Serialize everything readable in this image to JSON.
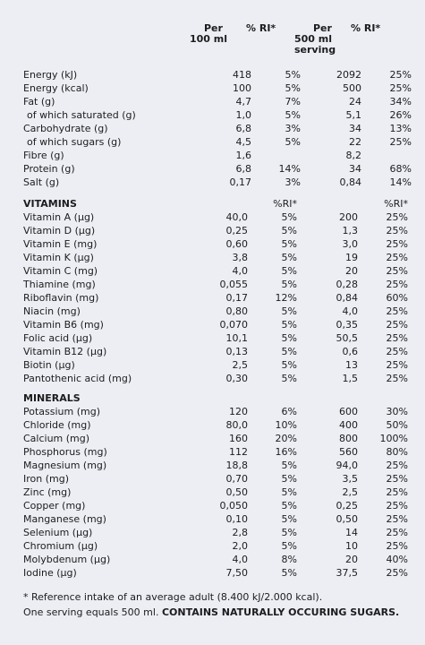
{
  "header": {
    "per100_line1": "Per",
    "per100_line2": "100 ml",
    "ri1": "% RI*",
    "per500_line1": "Per",
    "per500_line2": "500 ml",
    "per500_line3": "serving",
    "ri2": "% RI*"
  },
  "nutrition": [
    {
      "name": "Energy (kJ)",
      "v100": "418",
      "ri100": "5%",
      "v500": "2092",
      "ri500": "25%"
    },
    {
      "name": "Energy (kcal)",
      "v100": "100",
      "ri100": "5%",
      "v500": "500",
      "ri500": "25%"
    },
    {
      "name": "Fat (g)",
      "v100": "4,7",
      "ri100": "7%",
      "v500": "24",
      "ri500": "34%"
    },
    {
      "name": "of which saturated (g)",
      "v100": "1,0",
      "ri100": "5%",
      "v500": "5,1",
      "ri500": "26%",
      "indent": true
    },
    {
      "name": "Carbohydrate  (g)",
      "v100": "6,8",
      "ri100": "3%",
      "v500": "34",
      "ri500": "13%"
    },
    {
      "name": "of which sugars (g)",
      "v100": "4,5",
      "ri100": "5%",
      "v500": "22",
      "ri500": "25%",
      "indent": true
    },
    {
      "name": "Fibre (g)",
      "v100": "1,6",
      "ri100": "",
      "v500": "8,2",
      "ri500": ""
    },
    {
      "name": "Protein (g)",
      "v100": "6,8",
      "ri100": "14%",
      "v500": "34",
      "ri500": "68%"
    },
    {
      "name": "Salt (g)",
      "v100": "0,17",
      "ri100": "3%",
      "v500": "0,84",
      "ri500": "14%"
    }
  ],
  "vitamins": {
    "title": "VITAMINS",
    "ri_label1": "%RI*",
    "ri_label2": "%RI*",
    "rows": [
      {
        "name": "Vitamin A (µg)",
        "v100": "40,0",
        "ri100": "5%",
        "v500": "200",
        "ri500": "25%"
      },
      {
        "name": "Vitamin D (µg)",
        "v100": "0,25",
        "ri100": "5%",
        "v500": "1,3",
        "ri500": "25%"
      },
      {
        "name": "Vitamin E (mg)",
        "v100": "0,60",
        "ri100": "5%",
        "v500": "3,0",
        "ri500": "25%"
      },
      {
        "name": "Vitamin K (µg)",
        "v100": "3,8",
        "ri100": "5%",
        "v500": "19",
        "ri500": "25%"
      },
      {
        "name": "Vitamin C (mg)",
        "v100": "4,0",
        "ri100": "5%",
        "v500": "20",
        "ri500": "25%"
      },
      {
        "name": "Thiamine (mg)",
        "v100": "0,055",
        "ri100": "5%",
        "v500": "0,28",
        "ri500": "25%"
      },
      {
        "name": "Riboflavin (mg)",
        "v100": "0,17",
        "ri100": "12%",
        "v500": "0,84",
        "ri500": "60%"
      },
      {
        "name": "Niacin (mg)",
        "v100": "0,80",
        "ri100": "5%",
        "v500": "4,0",
        "ri500": "25%"
      },
      {
        "name": "Vitamin B6 (mg)",
        "v100": "0,070",
        "ri100": "5%",
        "v500": "0,35",
        "ri500": "25%"
      },
      {
        "name": "Folic acid (µg)",
        "v100": "10,1",
        "ri100": "5%",
        "v500": "50,5",
        "ri500": "25%"
      },
      {
        "name": "Vitamin B12 (µg)",
        "v100": "0,13",
        "ri100": "5%",
        "v500": "0,6",
        "ri500": "25%"
      },
      {
        "name": "Biotin (µg)",
        "v100": "2,5",
        "ri100": "5%",
        "v500": "13",
        "ri500": "25%"
      },
      {
        "name": "Pantothenic acid (mg)",
        "v100": "0,30",
        "ri100": "5%",
        "v500": "1,5",
        "ri500": "25%"
      }
    ]
  },
  "minerals": {
    "title": "MINERALS",
    "rows": [
      {
        "name": "Potassium (mg)",
        "v100": "120",
        "ri100": "6%",
        "v500": "600",
        "ri500": "30%"
      },
      {
        "name": "Chloride (mg)",
        "v100": "80,0",
        "ri100": "10%",
        "v500": "400",
        "ri500": "50%"
      },
      {
        "name": "Calcium (mg)",
        "v100": "160",
        "ri100": "20%",
        "v500": "800",
        "ri500": "100%"
      },
      {
        "name": "Phosphorus (mg)",
        "v100": "112",
        "ri100": "16%",
        "v500": "560",
        "ri500": "80%"
      },
      {
        "name": "Magnesium (mg)",
        "v100": "18,8",
        "ri100": "5%",
        "v500": "94,0",
        "ri500": "25%"
      },
      {
        "name": "Iron (mg)",
        "v100": "0,70",
        "ri100": "5%",
        "v500": "3,5",
        "ri500": "25%"
      },
      {
        "name": "Zinc (mg)",
        "v100": "0,50",
        "ri100": "5%",
        "v500": "2,5",
        "ri500": "25%"
      },
      {
        "name": "Copper (mg)",
        "v100": "0,050",
        "ri100": "5%",
        "v500": "0,25",
        "ri500": "25%"
      },
      {
        "name": "Manganese (mg)",
        "v100": "0,10",
        "ri100": "5%",
        "v500": "0,50",
        "ri500": "25%"
      },
      {
        "name": "Selenium (µg)",
        "v100": "2,8",
        "ri100": "5%",
        "v500": "14",
        "ri500": "25%"
      },
      {
        "name": "Chromium (µg)",
        "v100": "2,0",
        "ri100": "5%",
        "v500": "10",
        "ri500": "25%"
      },
      {
        "name": "Molybdenum (µg)",
        "v100": "4,0",
        "ri100": "8%",
        "v500": "20",
        "ri500": "40%"
      },
      {
        "name": "Iodine (µg)",
        "v100": "7,50",
        "ri100": "5%",
        "v500": "37,5",
        "ri500": "25%"
      }
    ]
  },
  "footer": {
    "line1": "* Reference intake of an average adult (8.400 kJ/2.000 kcal).",
    "line2_regular": "One serving equals 500 ml. ",
    "line2_bold": "CONTAINS NATURALLY OCCURING SUGARS."
  }
}
